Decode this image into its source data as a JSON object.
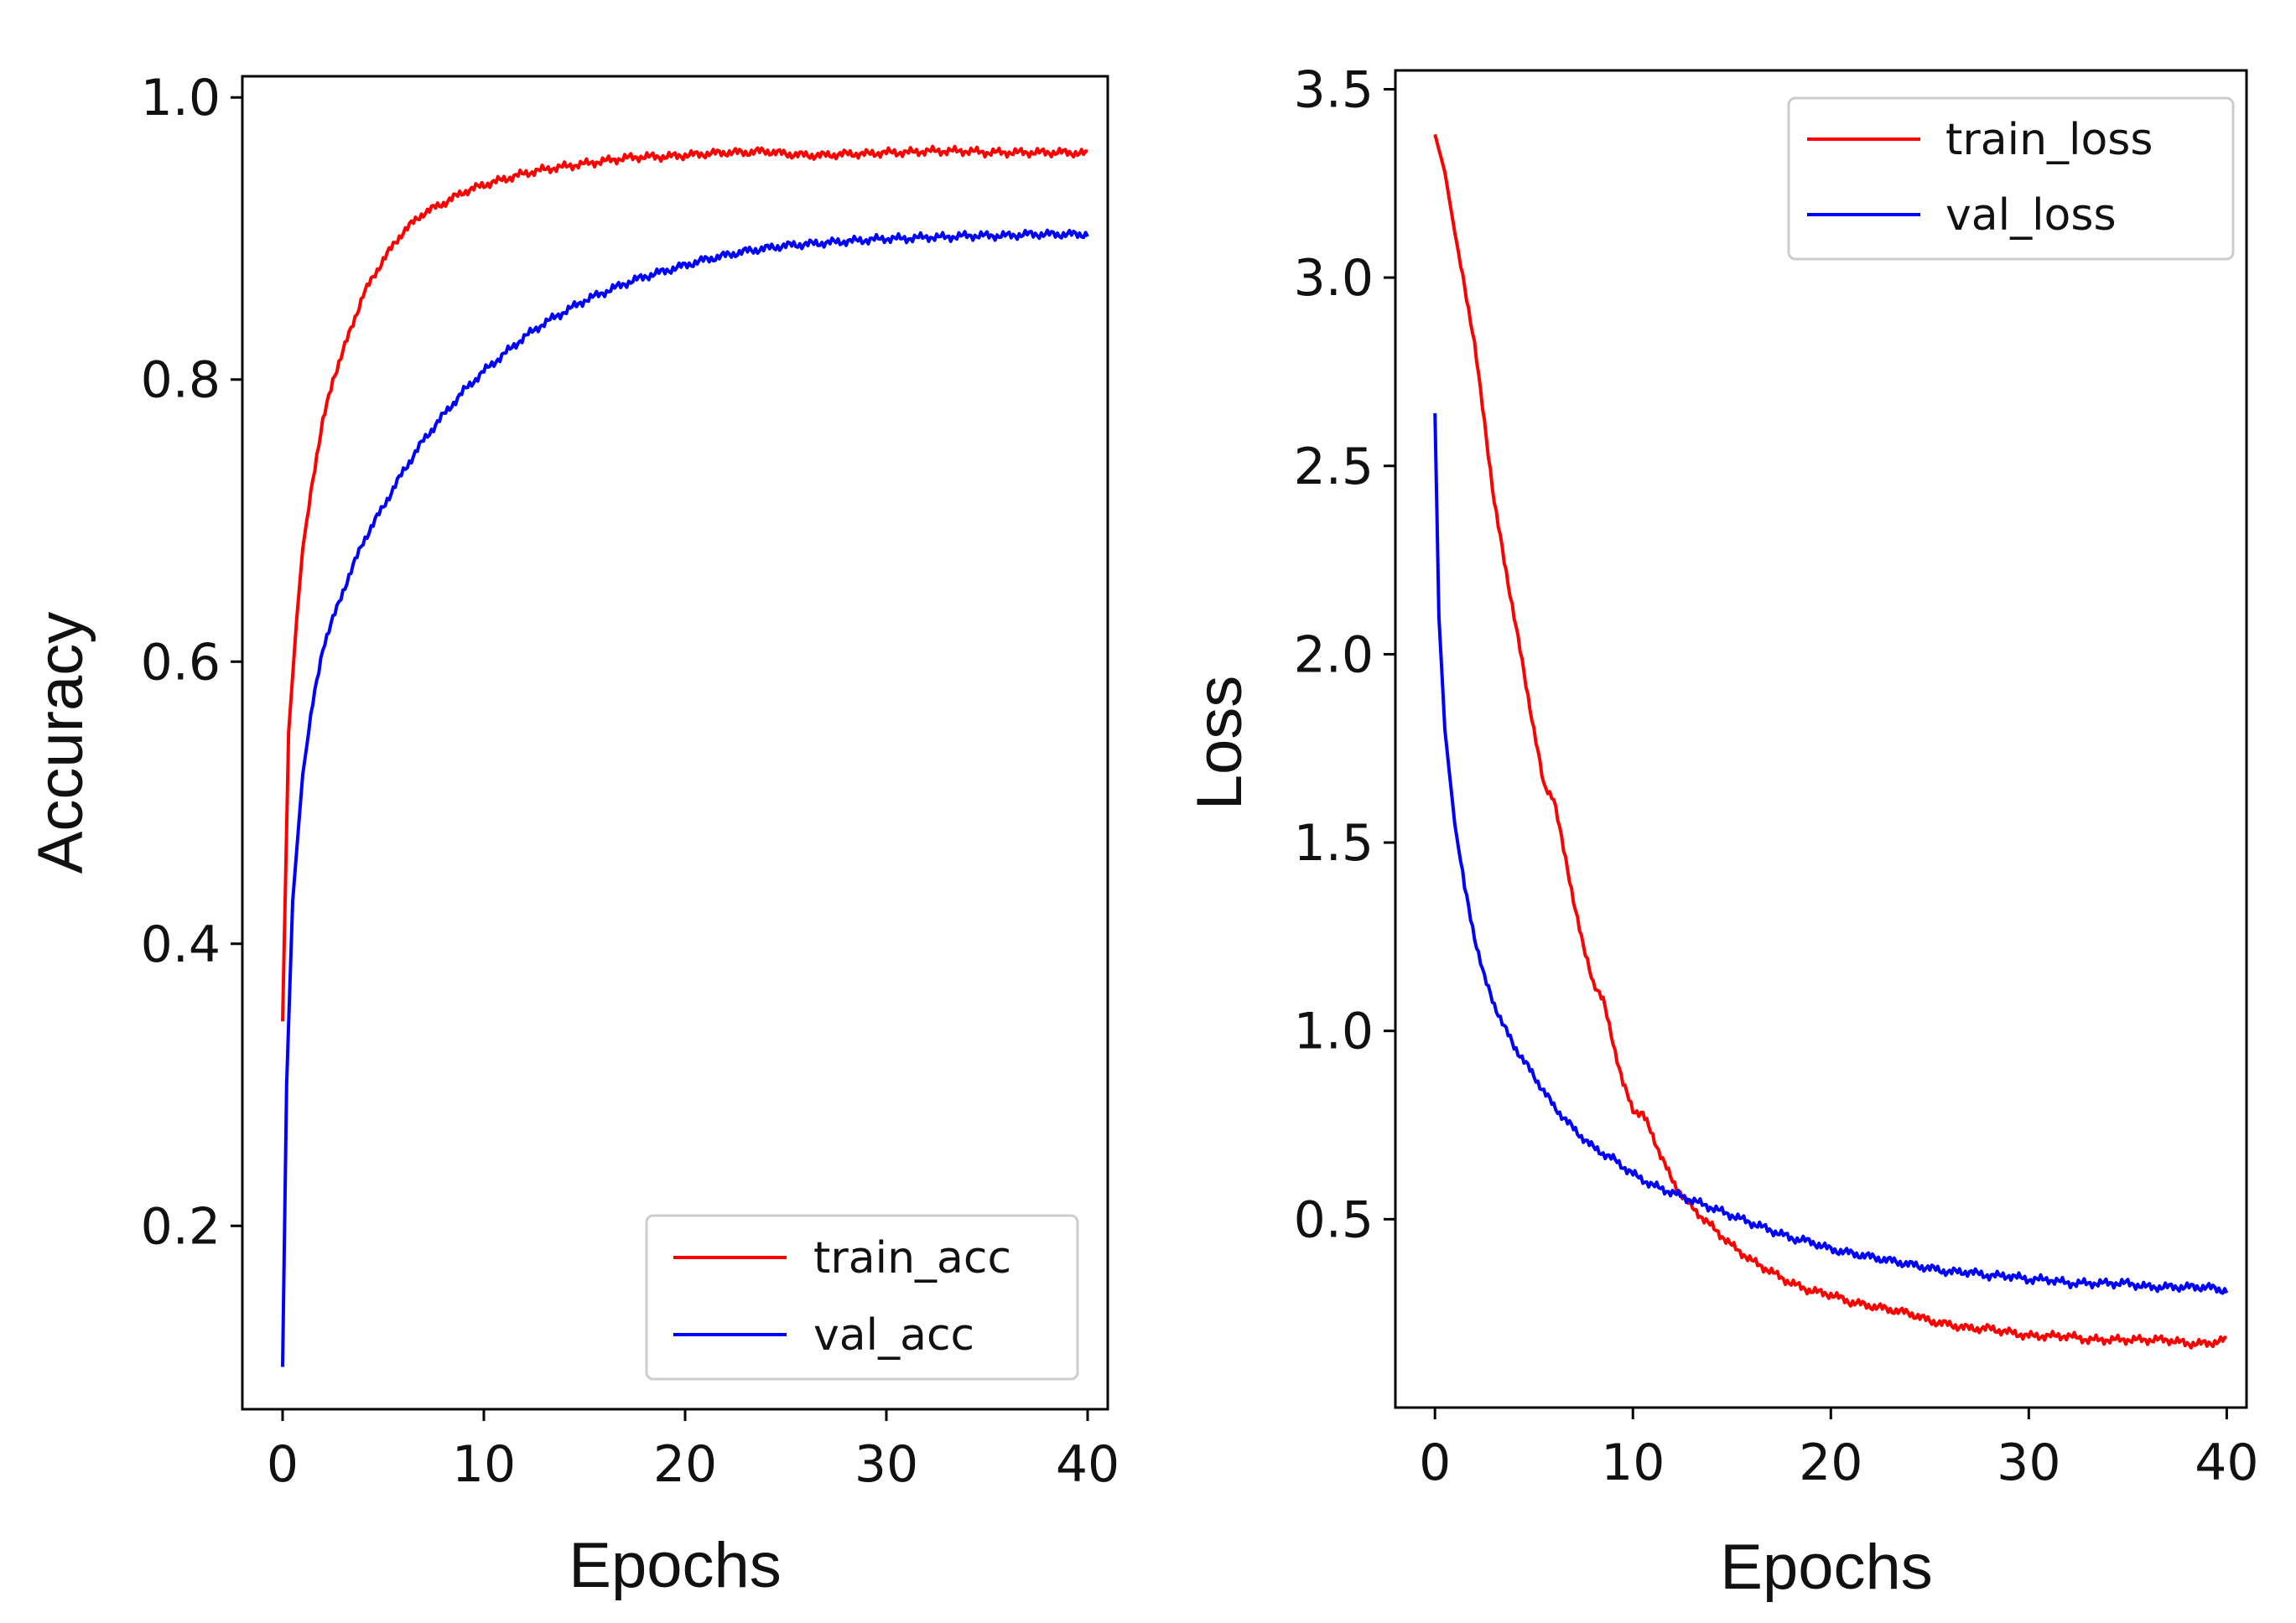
{
  "chart_data": [
    {
      "type": "line",
      "xlabel": "Epochs",
      "ylabel": "Accuracy",
      "xlim": [
        -2,
        41
      ],
      "ylim": [
        0.07,
        1.015
      ],
      "xticks": [
        0,
        10,
        20,
        30,
        40
      ],
      "xtick_labels": [
        "0",
        "10",
        "20",
        "30",
        "40"
      ],
      "yticks": [
        0.2,
        0.4,
        0.6,
        0.8,
        1.0
      ],
      "ytick_labels": [
        "0.2",
        "0.4",
        "0.6",
        "0.8",
        "1.0"
      ],
      "grid": false,
      "legend_position": "lower-right",
      "series": [
        {
          "name": "train_acc",
          "color": "#ff0000",
          "x": [
            0,
            0.3,
            0.7,
            1,
            1.5,
            2,
            2.5,
            3,
            3.5,
            4,
            5,
            6,
            7,
            8,
            9,
            10,
            11,
            12,
            13,
            14,
            15,
            16,
            17,
            18,
            19,
            20,
            21,
            22,
            23,
            24,
            25,
            26,
            27,
            28,
            29,
            30,
            31,
            32,
            33,
            34,
            35,
            36,
            37,
            38,
            39,
            40
          ],
          "values": [
            0.345,
            0.55,
            0.63,
            0.68,
            0.73,
            0.77,
            0.8,
            0.82,
            0.84,
            0.86,
            0.885,
            0.905,
            0.918,
            0.925,
            0.933,
            0.938,
            0.942,
            0.946,
            0.949,
            0.951,
            0.953,
            0.955,
            0.957,
            0.958,
            0.958,
            0.959,
            0.96,
            0.961,
            0.961,
            0.962,
            0.96,
            0.959,
            0.959,
            0.96,
            0.96,
            0.961,
            0.961,
            0.962,
            0.962,
            0.962,
            0.961,
            0.961,
            0.961,
            0.961,
            0.961,
            0.96
          ]
        },
        {
          "name": "val_acc",
          "color": "#0000ff",
          "x": [
            0,
            0.2,
            0.5,
            1,
            1.5,
            2,
            3,
            4,
            5,
            6,
            7,
            8,
            9,
            10,
            11,
            12,
            13,
            14,
            15,
            16,
            17,
            18,
            19,
            20,
            21,
            22,
            23,
            24,
            25,
            26,
            27,
            28,
            29,
            30,
            31,
            32,
            33,
            34,
            35,
            36,
            37,
            38,
            39,
            40
          ],
          "values": [
            0.1,
            0.3,
            0.43,
            0.52,
            0.57,
            0.61,
            0.65,
            0.685,
            0.71,
            0.735,
            0.757,
            0.775,
            0.792,
            0.806,
            0.818,
            0.83,
            0.84,
            0.848,
            0.856,
            0.862,
            0.868,
            0.873,
            0.877,
            0.881,
            0.885,
            0.888,
            0.891,
            0.893,
            0.895,
            0.896,
            0.897,
            0.898,
            0.899,
            0.9,
            0.9,
            0.901,
            0.901,
            0.902,
            0.902,
            0.902,
            0.903,
            0.903,
            0.903,
            0.903
          ]
        }
      ]
    },
    {
      "type": "line",
      "xlabel": "Epochs",
      "ylabel": "Loss",
      "xlim": [
        -2,
        41
      ],
      "ylim": [
        0.0,
        3.55
      ],
      "xticks": [
        0,
        10,
        20,
        30,
        40
      ],
      "xtick_labels": [
        "0",
        "10",
        "20",
        "30",
        "40"
      ],
      "yticks": [
        0.5,
        1.0,
        1.5,
        2.0,
        2.5,
        3.0,
        3.5
      ],
      "ytick_labels": [
        "0.5",
        "1.0",
        "1.5",
        "2.0",
        "2.5",
        "3.0",
        "3.5"
      ],
      "grid": false,
      "legend_position": "top-right",
      "series": [
        {
          "name": "train_loss",
          "color": "#ff0000",
          "x": [
            0,
            0.5,
            1,
            1.5,
            2,
            2.5,
            3,
            3.5,
            4,
            4.5,
            5,
            5.5,
            6,
            6.5,
            7,
            7.5,
            8,
            8.5,
            9,
            9.5,
            10,
            10.5,
            11,
            11.5,
            12,
            13,
            14,
            15,
            16,
            17,
            18,
            19,
            20,
            21,
            22,
            23,
            24,
            25,
            26,
            27,
            28,
            29,
            30,
            31,
            32,
            33,
            34,
            35,
            36,
            37,
            38,
            39,
            40
          ],
          "values": [
            3.38,
            3.28,
            3.12,
            2.98,
            2.82,
            2.62,
            2.4,
            2.25,
            2.1,
            1.95,
            1.8,
            1.65,
            1.62,
            1.48,
            1.35,
            1.22,
            1.13,
            1.08,
            0.97,
            0.86,
            0.79,
            0.78,
            0.72,
            0.66,
            0.6,
            0.53,
            0.48,
            0.43,
            0.39,
            0.36,
            0.33,
            0.31,
            0.3,
            0.28,
            0.27,
            0.26,
            0.25,
            0.23,
            0.22,
            0.21,
            0.21,
            0.2,
            0.19,
            0.19,
            0.19,
            0.18,
            0.18,
            0.18,
            0.18,
            0.18,
            0.17,
            0.17,
            0.18
          ]
        },
        {
          "name": "val_loss",
          "color": "#0000ff",
          "x": [
            0,
            0.2,
            0.5,
            1,
            1.5,
            2,
            2.5,
            3,
            3.5,
            4,
            4.5,
            5,
            6,
            7,
            8,
            9,
            10,
            11,
            12,
            13,
            14,
            15,
            16,
            17,
            18,
            19,
            20,
            21,
            22,
            23,
            24,
            25,
            26,
            27,
            28,
            29,
            30,
            31,
            32,
            33,
            34,
            35,
            36,
            37,
            38,
            39,
            40
          ],
          "values": [
            2.64,
            2.1,
            1.8,
            1.55,
            1.38,
            1.25,
            1.14,
            1.07,
            1.01,
            0.96,
            0.92,
            0.88,
            0.8,
            0.74,
            0.69,
            0.66,
            0.62,
            0.59,
            0.57,
            0.55,
            0.53,
            0.51,
            0.49,
            0.47,
            0.45,
            0.44,
            0.42,
            0.41,
            0.4,
            0.39,
            0.38,
            0.37,
            0.36,
            0.36,
            0.35,
            0.35,
            0.34,
            0.34,
            0.33,
            0.33,
            0.33,
            0.33,
            0.32,
            0.32,
            0.32,
            0.32,
            0.31
          ]
        }
      ]
    }
  ]
}
